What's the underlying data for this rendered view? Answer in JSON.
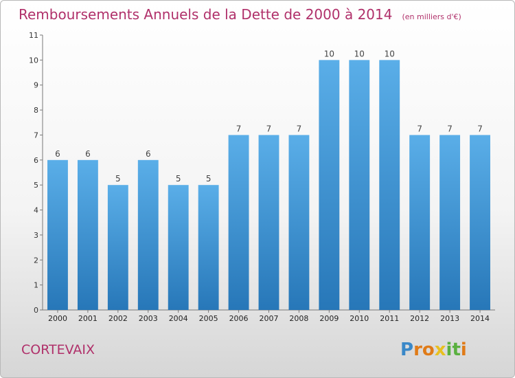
{
  "chart_data": {
    "type": "bar",
    "title": "Remboursements Annuels de la Dette de 2000 à 2014",
    "subtitle": "(en milliers d'€)",
    "categories": [
      "2000",
      "2001",
      "2002",
      "2003",
      "2004",
      "2005",
      "2006",
      "2007",
      "2008",
      "2009",
      "2010",
      "2011",
      "2012",
      "2013",
      "2014"
    ],
    "values": [
      6,
      6,
      5,
      6,
      5,
      5,
      7,
      7,
      7,
      10,
      10,
      10,
      7,
      7,
      7
    ],
    "data_labels": [
      "6",
      "6",
      "5",
      "6",
      "5",
      "5",
      "7",
      "7",
      "7",
      "10",
      "10",
      "10",
      "7",
      "7",
      "7"
    ],
    "y_ticks": [
      "0",
      "1",
      "2",
      "3",
      "4",
      "5",
      "6",
      "7",
      "8",
      "9",
      "10",
      "11"
    ],
    "ylim": [
      0,
      11
    ],
    "xlabel": "",
    "ylabel": "",
    "grid": false,
    "bar_color_top": "#5aaee8",
    "bar_color_bottom": "#2777b8"
  },
  "footer": {
    "place_name": "CORTEVAIX",
    "logo_letters": [
      "P",
      "r",
      "o",
      "x",
      "i",
      "t",
      "i"
    ],
    "logo_colors": [
      "#3a88c8",
      "#e07b18",
      "#e07b18",
      "#e8c020",
      "#5ab040",
      "#5ab040",
      "#e07b18"
    ]
  },
  "colors": {
    "accent": "#b0306a"
  }
}
